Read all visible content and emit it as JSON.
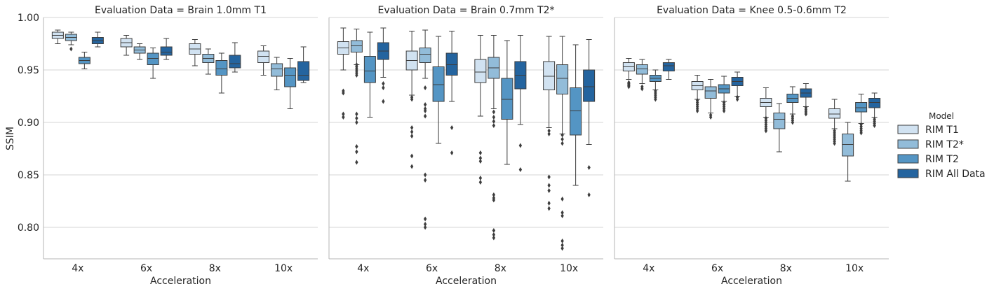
{
  "chart_data": {
    "type": "box",
    "ylabel": "SSIM",
    "xlabel": "Acceleration",
    "ylim": [
      0.77,
      1.0
    ],
    "yticks": [
      "0.80",
      "0.85",
      "0.90",
      "0.95",
      "1.00"
    ],
    "ytick_values": [
      0.8,
      0.85,
      0.9,
      0.95,
      1.0
    ],
    "categories": [
      "4x",
      "6x",
      "8x",
      "10x"
    ],
    "legend": {
      "title": "Model",
      "position": "right",
      "entries": [
        "RIM T1",
        "RIM T2*",
        "RIM T2",
        "RIM All Data"
      ],
      "colors": [
        "#d1e2f1",
        "#92bcd9",
        "#5495c4",
        "#24649f"
      ]
    },
    "panels": [
      {
        "title": "Evaluation Data = Brain 1.0mm T1",
        "series": [
          {
            "name": "RIM T1",
            "boxes": [
              {
                "wlo": 0.975,
                "q1": 0.98,
                "med": 0.983,
                "q3": 0.986,
                "whi": 0.988,
                "fl": []
              },
              {
                "wlo": 0.964,
                "q1": 0.972,
                "med": 0.976,
                "q3": 0.98,
                "whi": 0.983,
                "fl": []
              },
              {
                "wlo": 0.954,
                "q1": 0.965,
                "med": 0.97,
                "q3": 0.975,
                "whi": 0.979,
                "fl": []
              },
              {
                "wlo": 0.945,
                "q1": 0.957,
                "med": 0.963,
                "q3": 0.968,
                "whi": 0.973,
                "fl": []
              }
            ]
          },
          {
            "name": "RIM T2*",
            "boxes": [
              {
                "wlo": 0.974,
                "q1": 0.978,
                "med": 0.981,
                "q3": 0.984,
                "whi": 0.986,
                "fl": [
                  0.97
                ]
              },
              {
                "wlo": 0.96,
                "q1": 0.966,
                "med": 0.969,
                "q3": 0.972,
                "whi": 0.975,
                "fl": []
              },
              {
                "wlo": 0.946,
                "q1": 0.957,
                "med": 0.961,
                "q3": 0.965,
                "whi": 0.97,
                "fl": []
              },
              {
                "wlo": 0.931,
                "q1": 0.944,
                "med": 0.951,
                "q3": 0.956,
                "whi": 0.962,
                "fl": []
              }
            ]
          },
          {
            "name": "RIM T2",
            "boxes": [
              {
                "wlo": 0.951,
                "q1": 0.956,
                "med": 0.959,
                "q3": 0.962,
                "whi": 0.967,
                "fl": []
              },
              {
                "wlo": 0.942,
                "q1": 0.955,
                "med": 0.961,
                "q3": 0.966,
                "whi": 0.971,
                "fl": []
              },
              {
                "wlo": 0.928,
                "q1": 0.945,
                "med": 0.951,
                "q3": 0.959,
                "whi": 0.966,
                "fl": []
              },
              {
                "wlo": 0.913,
                "q1": 0.934,
                "med": 0.945,
                "q3": 0.952,
                "whi": 0.961,
                "fl": []
              }
            ]
          },
          {
            "name": "RIM All Data",
            "boxes": [
              {
                "wlo": 0.972,
                "q1": 0.975,
                "med": 0.978,
                "q3": 0.981,
                "whi": 0.986,
                "fl": []
              },
              {
                "wlo": 0.96,
                "q1": 0.964,
                "med": 0.967,
                "q3": 0.972,
                "whi": 0.98,
                "fl": []
              },
              {
                "wlo": 0.948,
                "q1": 0.952,
                "med": 0.956,
                "q3": 0.964,
                "whi": 0.976,
                "fl": []
              },
              {
                "wlo": 0.938,
                "q1": 0.94,
                "med": 0.945,
                "q3": 0.958,
                "whi": 0.972,
                "fl": []
              }
            ]
          }
        ]
      },
      {
        "title": "Evaluation Data = Brain 0.7mm T2*",
        "series": [
          {
            "name": "RIM T1",
            "boxes": [
              {
                "wlo": 0.95,
                "q1": 0.965,
                "med": 0.971,
                "q3": 0.977,
                "whi": 0.99,
                "fl": [
                  0.93,
                  0.928,
                  0.908,
                  0.905
                ]
              },
              {
                "wlo": 0.926,
                "q1": 0.95,
                "med": 0.959,
                "q3": 0.968,
                "whi": 0.987,
                "fl": [
                  0.924,
                  0.922,
                  0.895,
                  0.891,
                  0.887,
                  0.868,
                  0.858
                ]
              },
              {
                "wlo": 0.906,
                "q1": 0.938,
                "med": 0.948,
                "q3": 0.96,
                "whi": 0.983,
                "fl": [
                  0.871,
                  0.866,
                  0.863,
                  0.847,
                  0.843
                ]
              },
              {
                "wlo": 0.895,
                "q1": 0.931,
                "med": 0.944,
                "q3": 0.958,
                "whi": 0.982,
                "fl": [
                  0.892,
                  0.889,
                  0.848,
                  0.84,
                  0.835,
                  0.823,
                  0.818
                ]
              }
            ]
          },
          {
            "name": "RIM T2*",
            "boxes": [
              {
                "wlo": 0.955,
                "q1": 0.967,
                "med": 0.973,
                "q3": 0.978,
                "whi": 0.989,
                "fl": [
                  0.955,
                  0.953,
                  0.951,
                  0.949,
                  0.947,
                  0.945,
                  0.908,
                  0.904,
                  0.9,
                  0.877,
                  0.872,
                  0.862
                ]
              },
              {
                "wlo": 0.942,
                "q1": 0.957,
                "med": 0.965,
                "q3": 0.971,
                "whi": 0.988,
                "fl": [
                  0.933,
                  0.917,
                  0.913,
                  0.911,
                  0.906,
                  0.85,
                  0.845,
                  0.808,
                  0.803,
                  0.8
                ]
              },
              {
                "wlo": 0.913,
                "q1": 0.942,
                "med": 0.952,
                "q3": 0.962,
                "whi": 0.983,
                "fl": [
                  0.91,
                  0.905,
                  0.901,
                  0.897,
                  0.831,
                  0.828,
                  0.826,
                  0.797,
                  0.793,
                  0.79
                ]
              },
              {
                "wlo": 0.889,
                "q1": 0.927,
                "med": 0.942,
                "q3": 0.955,
                "whi": 0.982,
                "fl": [
                  0.888,
                  0.884,
                  0.88,
                  0.827,
                  0.814,
                  0.811,
                  0.787,
                  0.783,
                  0.78
                ]
              }
            ]
          },
          {
            "name": "RIM T2",
            "boxes": [
              {
                "wlo": 0.905,
                "q1": 0.938,
                "med": 0.949,
                "q3": 0.963,
                "whi": 0.986,
                "fl": []
              },
              {
                "wlo": 0.88,
                "q1": 0.92,
                "med": 0.936,
                "q3": 0.953,
                "whi": 0.982,
                "fl": []
              },
              {
                "wlo": 0.86,
                "q1": 0.903,
                "med": 0.922,
                "q3": 0.942,
                "whi": 0.978,
                "fl": []
              },
              {
                "wlo": 0.84,
                "q1": 0.888,
                "med": 0.911,
                "q3": 0.933,
                "whi": 0.974,
                "fl": []
              }
            ]
          },
          {
            "name": "RIM All Data",
            "boxes": [
              {
                "wlo": 0.943,
                "q1": 0.96,
                "med": 0.968,
                "q3": 0.976,
                "whi": 0.99,
                "fl": [
                  0.937,
                  0.933,
                  0.92
                ]
              },
              {
                "wlo": 0.92,
                "q1": 0.945,
                "med": 0.955,
                "q3": 0.966,
                "whi": 0.987,
                "fl": [
                  0.895,
                  0.871
                ]
              },
              {
                "wlo": 0.898,
                "q1": 0.932,
                "med": 0.945,
                "q3": 0.958,
                "whi": 0.983,
                "fl": [
                  0.878,
                  0.855
                ]
              },
              {
                "wlo": 0.879,
                "q1": 0.92,
                "med": 0.934,
                "q3": 0.95,
                "whi": 0.979,
                "fl": [
                  0.857,
                  0.831
                ]
              }
            ]
          }
        ]
      },
      {
        "title": "Evaluation Data = Knee 0.5-0.6mm T2",
        "series": [
          {
            "name": "RIM T1",
            "boxes": [
              {
                "wlo": 0.941,
                "q1": 0.949,
                "med": 0.953,
                "q3": 0.957,
                "whi": 0.961,
                "fl": [
                  0.938,
                  0.937,
                  0.936,
                  0.935,
                  0.934
                ]
              },
              {
                "wlo": 0.922,
                "q1": 0.931,
                "med": 0.935,
                "q3": 0.939,
                "whi": 0.945,
                "fl": [
                  0.921,
                  0.919,
                  0.917,
                  0.915,
                  0.913,
                  0.911
                ]
              },
              {
                "wlo": 0.905,
                "q1": 0.915,
                "med": 0.919,
                "q3": 0.923,
                "whi": 0.933,
                "fl": [
                  0.904,
                  0.902,
                  0.9,
                  0.898,
                  0.896,
                  0.894,
                  0.892
                ]
              },
              {
                "wlo": 0.894,
                "q1": 0.904,
                "med": 0.908,
                "q3": 0.913,
                "whi": 0.922,
                "fl": [
                  0.892,
                  0.89,
                  0.888,
                  0.886,
                  0.884,
                  0.882,
                  0.88
                ]
              }
            ]
          },
          {
            "name": "RIM T2*",
            "boxes": [
              {
                "wlo": 0.937,
                "q1": 0.946,
                "med": 0.951,
                "q3": 0.955,
                "whi": 0.96,
                "fl": [
                  0.934,
                  0.932
                ]
              },
              {
                "wlo": 0.909,
                "q1": 0.923,
                "med": 0.93,
                "q3": 0.934,
                "whi": 0.941,
                "fl": [
                  0.907,
                  0.905
                ]
              },
              {
                "wlo": 0.872,
                "q1": 0.894,
                "med": 0.903,
                "q3": 0.909,
                "whi": 0.918,
                "fl": []
              },
              {
                "wlo": 0.844,
                "q1": 0.868,
                "med": 0.879,
                "q3": 0.889,
                "whi": 0.9,
                "fl": []
              }
            ]
          },
          {
            "name": "RIM T2",
            "boxes": [
              {
                "wlo": 0.931,
                "q1": 0.939,
                "med": 0.942,
                "q3": 0.945,
                "whi": 0.95,
                "fl": [
                  0.93,
                  0.928,
                  0.926,
                  0.924,
                  0.922
                ]
              },
              {
                "wlo": 0.92,
                "q1": 0.928,
                "med": 0.932,
                "q3": 0.936,
                "whi": 0.944,
                "fl": [
                  0.919,
                  0.917,
                  0.915,
                  0.913,
                  0.911
                ]
              },
              {
                "wlo": 0.908,
                "q1": 0.919,
                "med": 0.923,
                "q3": 0.927,
                "whi": 0.934,
                "fl": [
                  0.906,
                  0.904,
                  0.902,
                  0.9
                ]
              },
              {
                "wlo": 0.899,
                "q1": 0.91,
                "med": 0.914,
                "q3": 0.919,
                "whi": 0.927,
                "fl": [
                  0.898,
                  0.896,
                  0.894,
                  0.892,
                  0.89
                ]
              }
            ]
          },
          {
            "name": "RIM All Data",
            "boxes": [
              {
                "wlo": 0.941,
                "q1": 0.949,
                "med": 0.954,
                "q3": 0.957,
                "whi": 0.96,
                "fl": []
              },
              {
                "wlo": 0.925,
                "q1": 0.935,
                "med": 0.939,
                "q3": 0.943,
                "whi": 0.948,
                "fl": [
                  0.924,
                  0.922
                ]
              },
              {
                "wlo": 0.915,
                "q1": 0.924,
                "med": 0.928,
                "q3": 0.932,
                "whi": 0.937,
                "fl": [
                  0.914,
                  0.912,
                  0.91,
                  0.908
                ]
              },
              {
                "wlo": 0.905,
                "q1": 0.914,
                "med": 0.919,
                "q3": 0.923,
                "whi": 0.928,
                "fl": [
                  0.903,
                  0.901,
                  0.899,
                  0.897
                ]
              }
            ]
          }
        ]
      }
    ]
  }
}
